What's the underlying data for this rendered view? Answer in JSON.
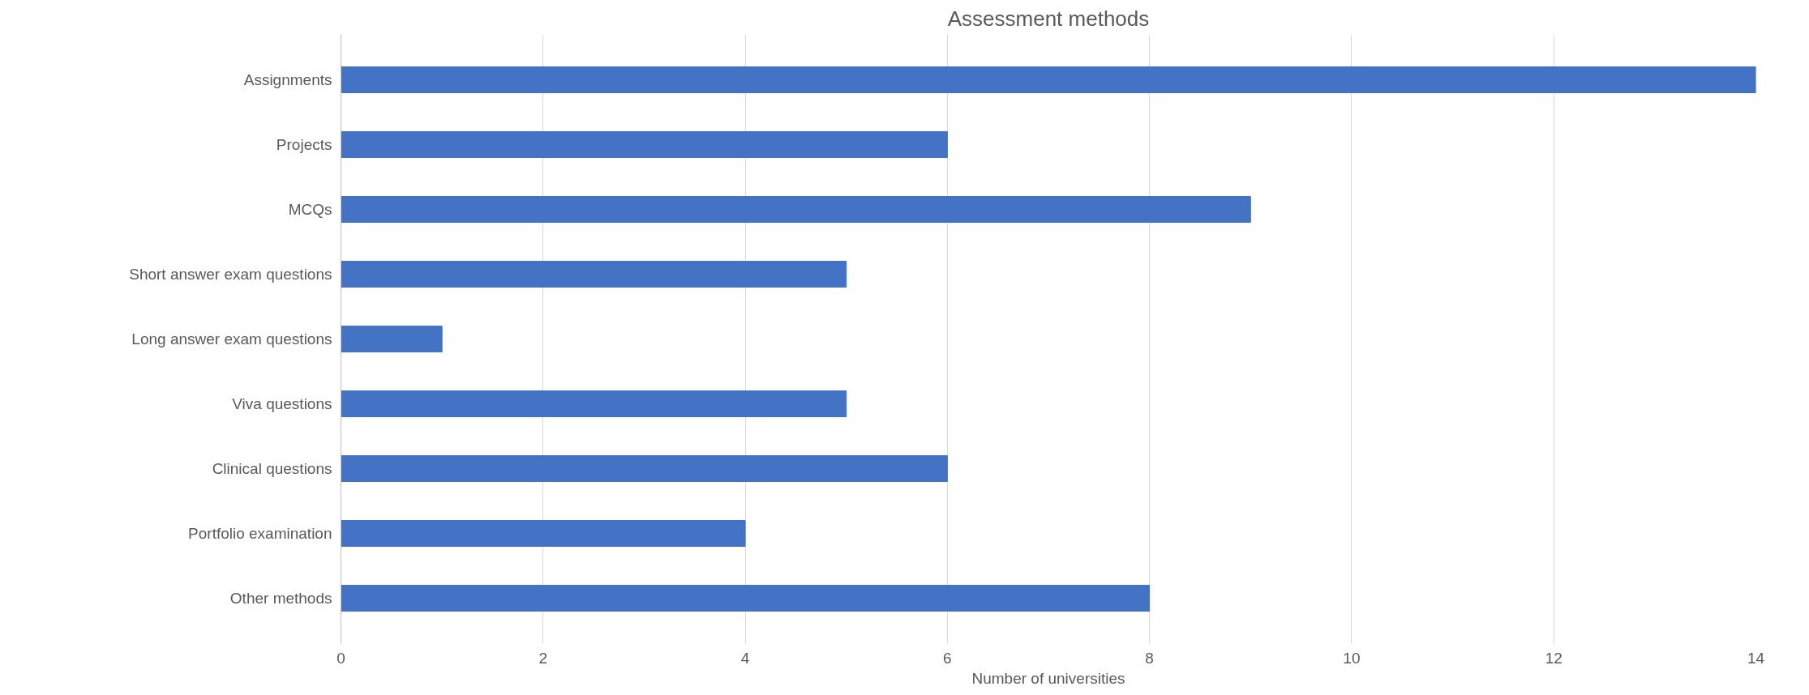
{
  "chart_data": {
    "type": "bar",
    "orientation": "horizontal",
    "title": "Assessment methods",
    "xlabel": "Number of universities",
    "categories": [
      "Assignments",
      "Projects",
      "MCQs",
      "Short answer exam questions",
      "Long answer exam questions",
      "Viva questions",
      "Clinical questions",
      "Portfolio examination",
      "Other methods"
    ],
    "values": [
      14,
      6,
      9,
      5,
      1,
      5,
      6,
      4,
      8
    ],
    "color": "#4472c4",
    "xlim": [
      0,
      14
    ],
    "xticks": [
      0,
      2,
      4,
      6,
      8,
      10,
      12,
      14
    ],
    "grid": "x"
  }
}
